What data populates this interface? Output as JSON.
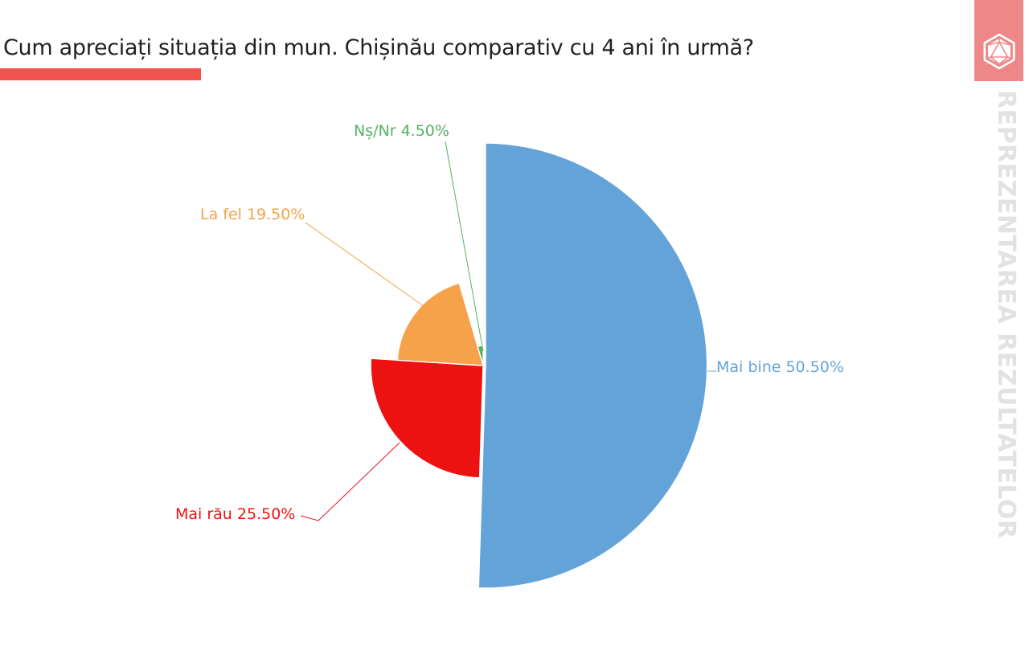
{
  "page": {
    "background_color": "#ffffff"
  },
  "header": {
    "title": "Cum apreciați situația din mun. Chișinău comparativ cu 4 ani în urmă?",
    "accent_bar_color": "#f0534d",
    "title_color": "#212121"
  },
  "branding": {
    "logo_background_color": "#ee8888",
    "logo_icon": "d20-dice-icon",
    "watermark_text": "REPREZENTAREA REZULTATELOR",
    "watermark_color": "#e2e2e2"
  },
  "chart_data": {
    "type": "pie",
    "unit": "%",
    "start_angle_deg": 0,
    "direction": "clockwise",
    "radius_mode": "proportional-to-value",
    "legend_position": "none",
    "labels": "outside-with-leader-lines",
    "categories": [
      "Mai bine",
      "Mai rău",
      "La fel",
      "Nș/Nr"
    ],
    "values": [
      50.5,
      25.5,
      19.5,
      4.5
    ],
    "slices": [
      {
        "label": "Mai bine",
        "value": 50.5,
        "display": "Mai bine 50.50%",
        "color": "#64a3d8"
      },
      {
        "label": "Mai rău",
        "value": 25.5,
        "display": "Mai rău 25.50%",
        "color": "#ed1212"
      },
      {
        "label": "La fel",
        "value": 19.5,
        "display": "La fel 19.50%",
        "color": "#f5a24b"
      },
      {
        "label": "Nș/Nr",
        "value": 4.5,
        "display": "Nș/Nr 4.50%",
        "color": "#54b163"
      }
    ]
  }
}
